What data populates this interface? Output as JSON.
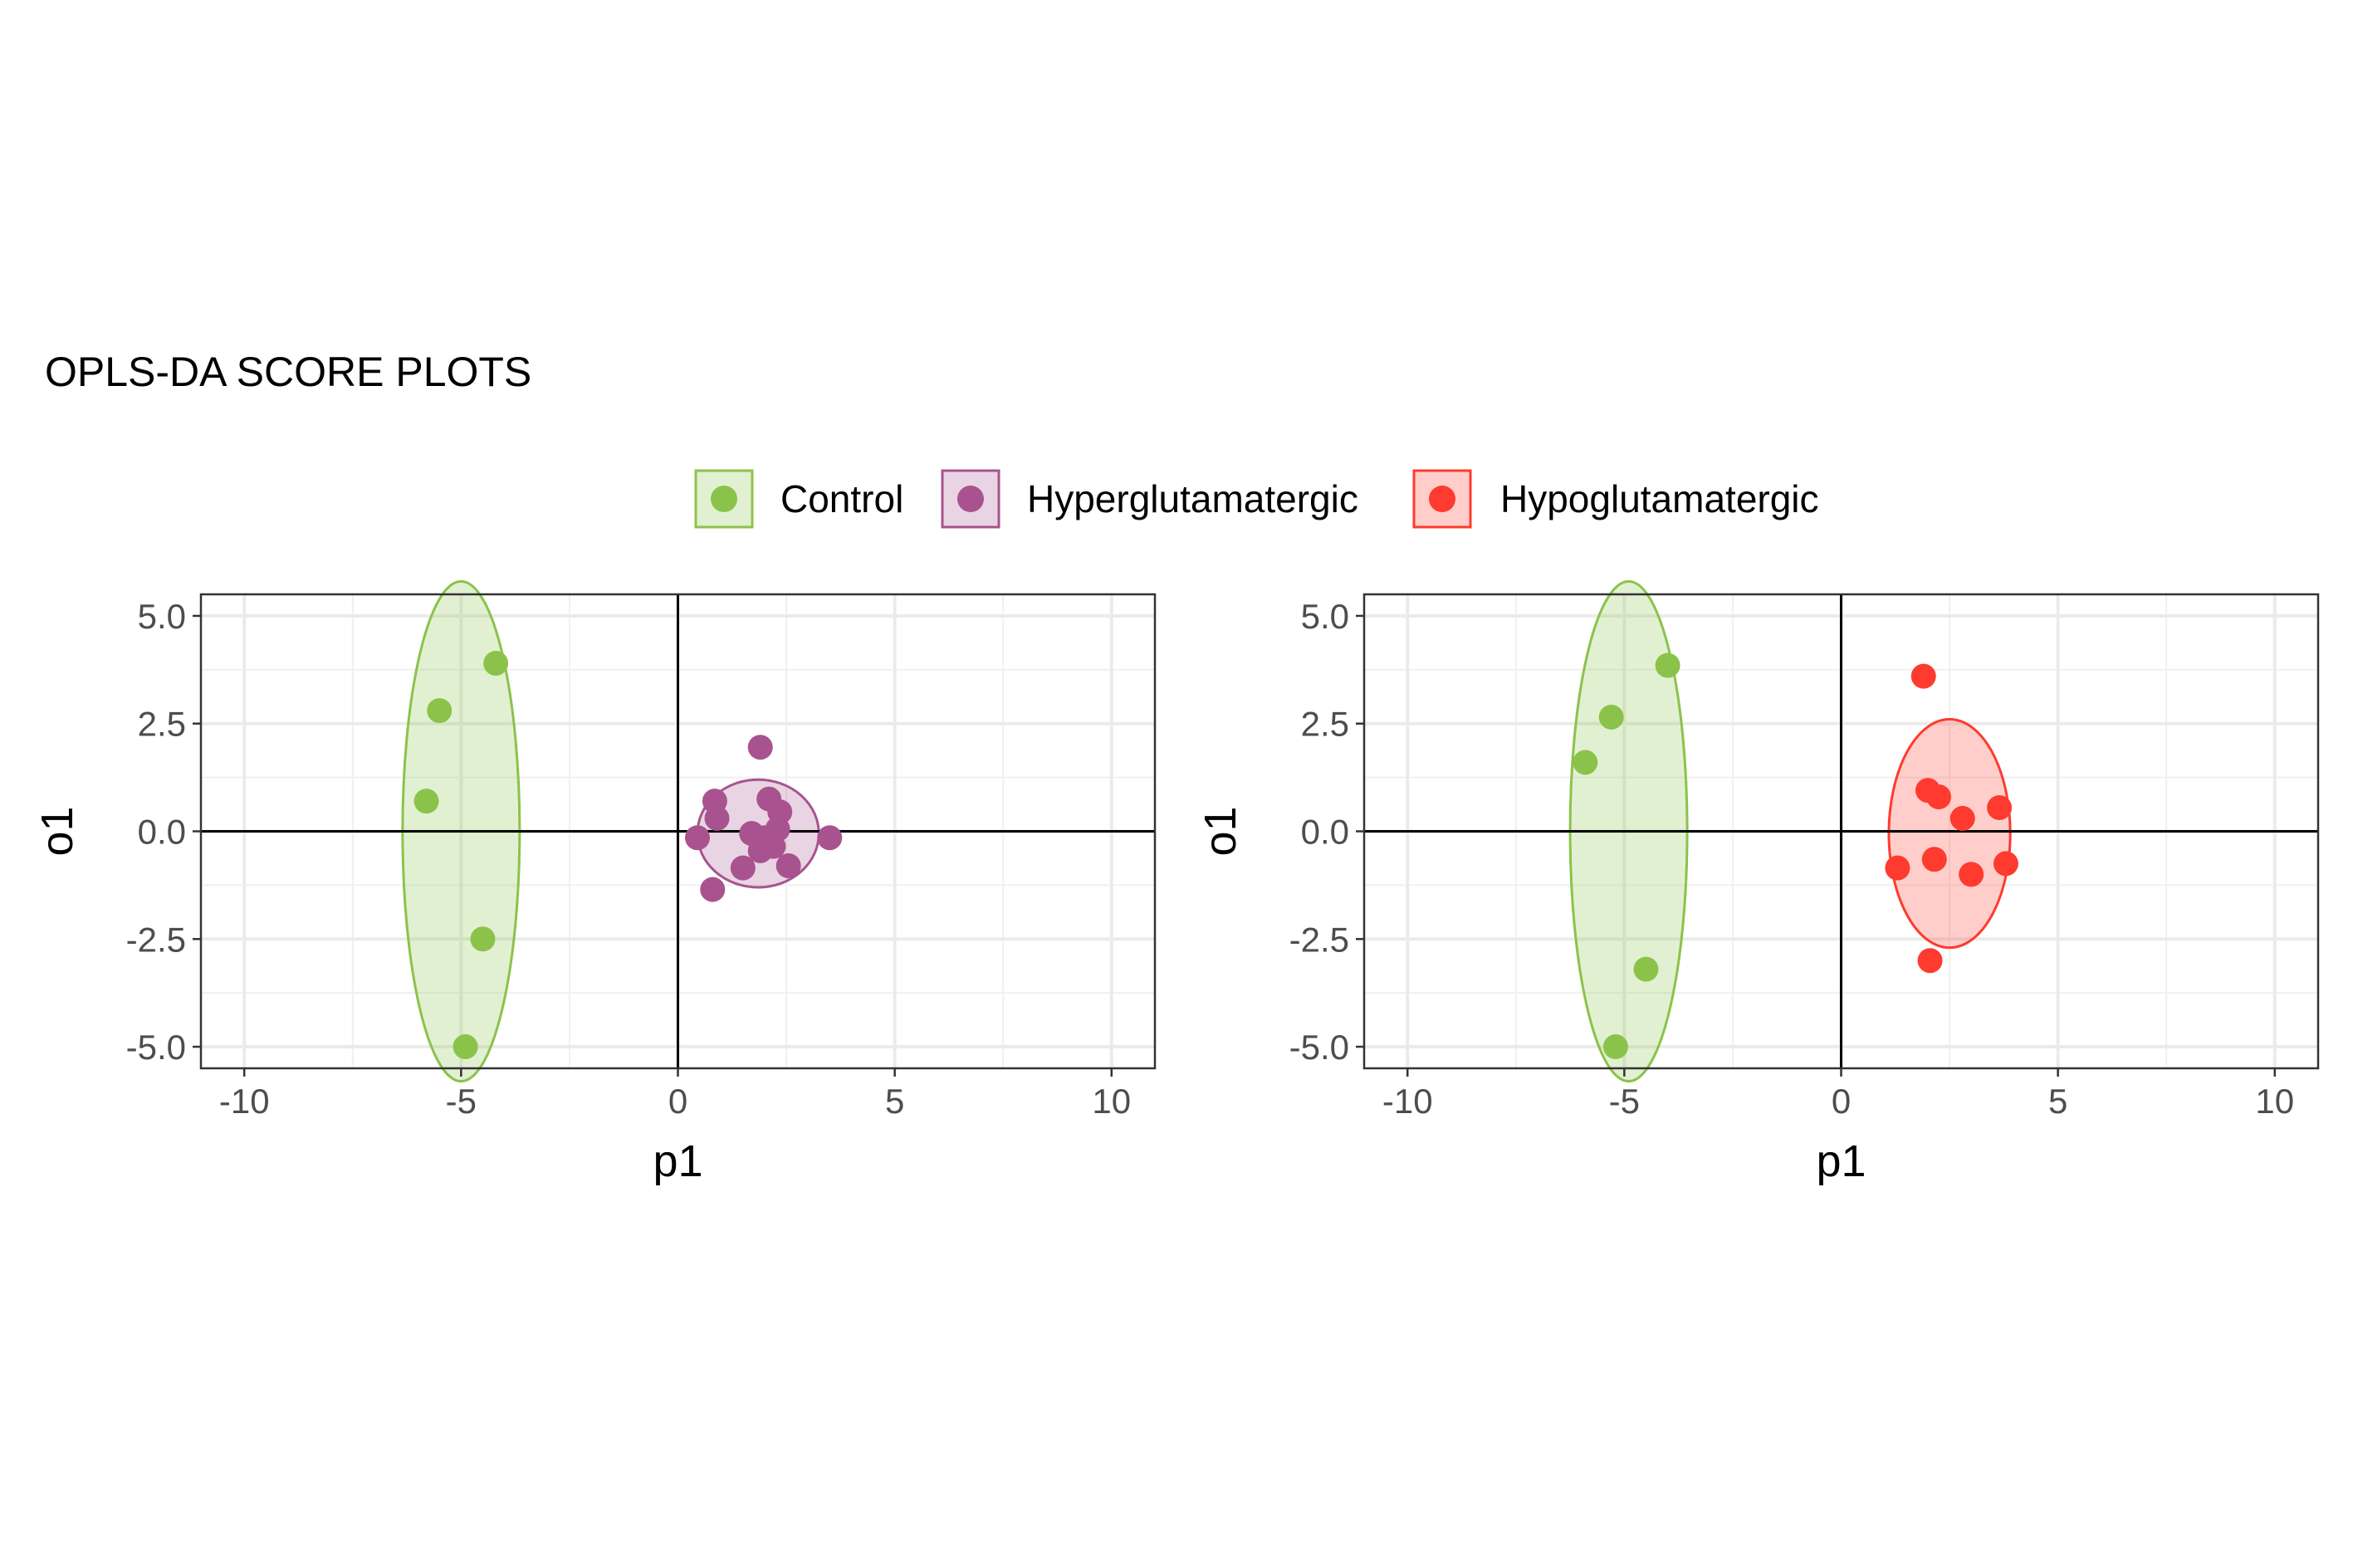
{
  "title": "OPLS-DA SCORE PLOTS",
  "legend": [
    {
      "label": "Control",
      "color": "#8BC34A"
    },
    {
      "label": "Hyperglutamatergic",
      "color": "#A8538F"
    },
    {
      "label": "Hypoglutamatergic",
      "color": "#FF3A2E"
    }
  ],
  "chart_data": [
    {
      "type": "scatter",
      "xlabel": "p1",
      "ylabel": "o1",
      "xlim": [
        -11,
        11
      ],
      "ylim": [
        -5.5,
        5.5
      ],
      "xticks": [
        -10,
        -5,
        0,
        5,
        10
      ],
      "xtick_labels": [
        "-10",
        "-5",
        "0",
        "5",
        "10"
      ],
      "yticks": [
        -5,
        -2.5,
        0,
        2.5,
        5
      ],
      "ytick_labels": [
        "-5.0",
        "-2.5",
        "0.0",
        "2.5",
        "5.0"
      ],
      "grid": true,
      "series": [
        {
          "name": "Control",
          "color": "#8BC34A",
          "points": [
            [
              -4.2,
              3.9
            ],
            [
              -5.5,
              2.8
            ],
            [
              -5.8,
              0.7
            ],
            [
              -4.5,
              -2.5
            ],
            [
              -4.9,
              -5.0
            ]
          ],
          "ellipse": {
            "center": [
              -5.0,
              0.0
            ],
            "semi_x": 1.35,
            "semi_y": 5.8
          }
        },
        {
          "name": "Hyperglutamatergic",
          "color": "#A8538F",
          "points": [
            [
              1.9,
              1.95
            ],
            [
              2.1,
              0.75
            ],
            [
              2.35,
              0.45
            ],
            [
              0.85,
              0.7
            ],
            [
              0.9,
              0.3
            ],
            [
              2.3,
              0.05
            ],
            [
              1.7,
              -0.05
            ],
            [
              2.0,
              -0.15
            ],
            [
              0.45,
              -0.15
            ],
            [
              3.5,
              -0.15
            ],
            [
              2.2,
              -0.35
            ],
            [
              1.9,
              -0.45
            ],
            [
              1.5,
              -0.85
            ],
            [
              2.55,
              -0.8
            ],
            [
              0.8,
              -1.35
            ]
          ],
          "ellipse": {
            "center": [
              1.85,
              -0.05
            ],
            "semi_x": 1.4,
            "semi_y": 1.25
          }
        }
      ]
    },
    {
      "type": "scatter",
      "xlabel": "p1",
      "ylabel": "o1",
      "xlim": [
        -11,
        11
      ],
      "ylim": [
        -5.5,
        5.5
      ],
      "xticks": [
        -10,
        -5,
        0,
        5,
        10
      ],
      "xtick_labels": [
        "-10",
        "-5",
        "0",
        "5",
        "10"
      ],
      "yticks": [
        -5,
        -2.5,
        0,
        2.5,
        5
      ],
      "ytick_labels": [
        "-5.0",
        "-2.5",
        "0.0",
        "2.5",
        "5.0"
      ],
      "grid": true,
      "series": [
        {
          "name": "Control",
          "color": "#8BC34A",
          "points": [
            [
              -4.0,
              3.85
            ],
            [
              -5.3,
              2.65
            ],
            [
              -5.9,
              1.6
            ],
            [
              -4.5,
              -3.2
            ],
            [
              -5.2,
              -5.0
            ]
          ],
          "ellipse": {
            "center": [
              -4.9,
              0.0
            ],
            "semi_x": 1.35,
            "semi_y": 5.8
          }
        },
        {
          "name": "Hypoglutamatergic",
          "color": "#FF3A2E",
          "points": [
            [
              1.9,
              3.6
            ],
            [
              2.0,
              0.95
            ],
            [
              2.25,
              0.8
            ],
            [
              3.65,
              0.55
            ],
            [
              2.8,
              0.3
            ],
            [
              1.3,
              -0.85
            ],
            [
              2.15,
              -0.65
            ],
            [
              3.8,
              -0.75
            ],
            [
              3.0,
              -1.0
            ],
            [
              2.05,
              -3.0
            ]
          ],
          "ellipse": {
            "center": [
              2.5,
              -0.05
            ],
            "semi_x": 1.4,
            "semi_y": 2.65
          }
        }
      ]
    }
  ]
}
